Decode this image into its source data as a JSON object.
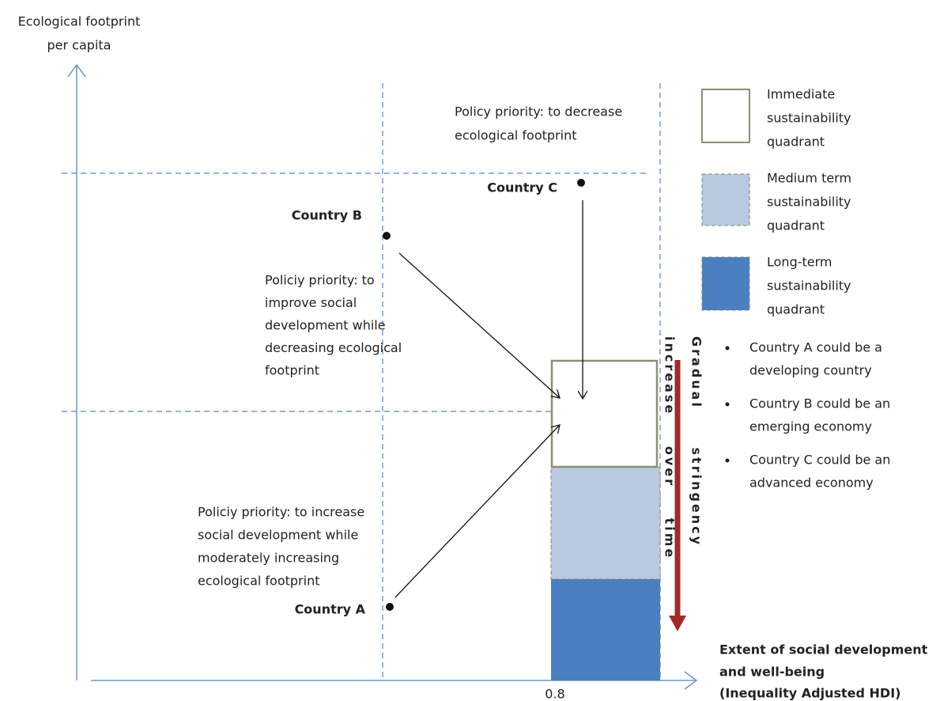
{
  "y_axis_label": [
    "Ecological footprint",
    "per capita"
  ],
  "x_axis_label": [
    "Extent of social development",
    "and well-being",
    "(Inequality Adjusted HDI)"
  ],
  "x_tick": "0.8",
  "countries": [
    {
      "label": "Country A",
      "policy": [
        "Policiy priority: to increase",
        "social development while",
        "moderately increasing",
        "ecological footprint"
      ]
    },
    {
      "label": "Country B",
      "policy": [
        "Policiy priority: to",
        "improve social",
        "development while",
        "decreasing ecological",
        "footprint"
      ]
    },
    {
      "label": "Country C",
      "policy": [
        "Policy priority: to decrease",
        "ecological footprint"
      ]
    }
  ],
  "legend": [
    {
      "label": [
        "Immediate",
        "sustainability",
        "quadrant"
      ]
    },
    {
      "label": [
        "Medium term",
        "sustainability",
        "quadrant"
      ]
    },
    {
      "label": [
        "Long-term",
        "sustainability",
        "quadrant"
      ]
    }
  ],
  "notes": [
    [
      "Country A could be a",
      "developing country"
    ],
    [
      "Country B could be an",
      "emerging economy"
    ],
    [
      "Country C could be an",
      "advanced economy"
    ]
  ],
  "arrow_label": [
    "Gradual stringency",
    "increase over time"
  ]
}
